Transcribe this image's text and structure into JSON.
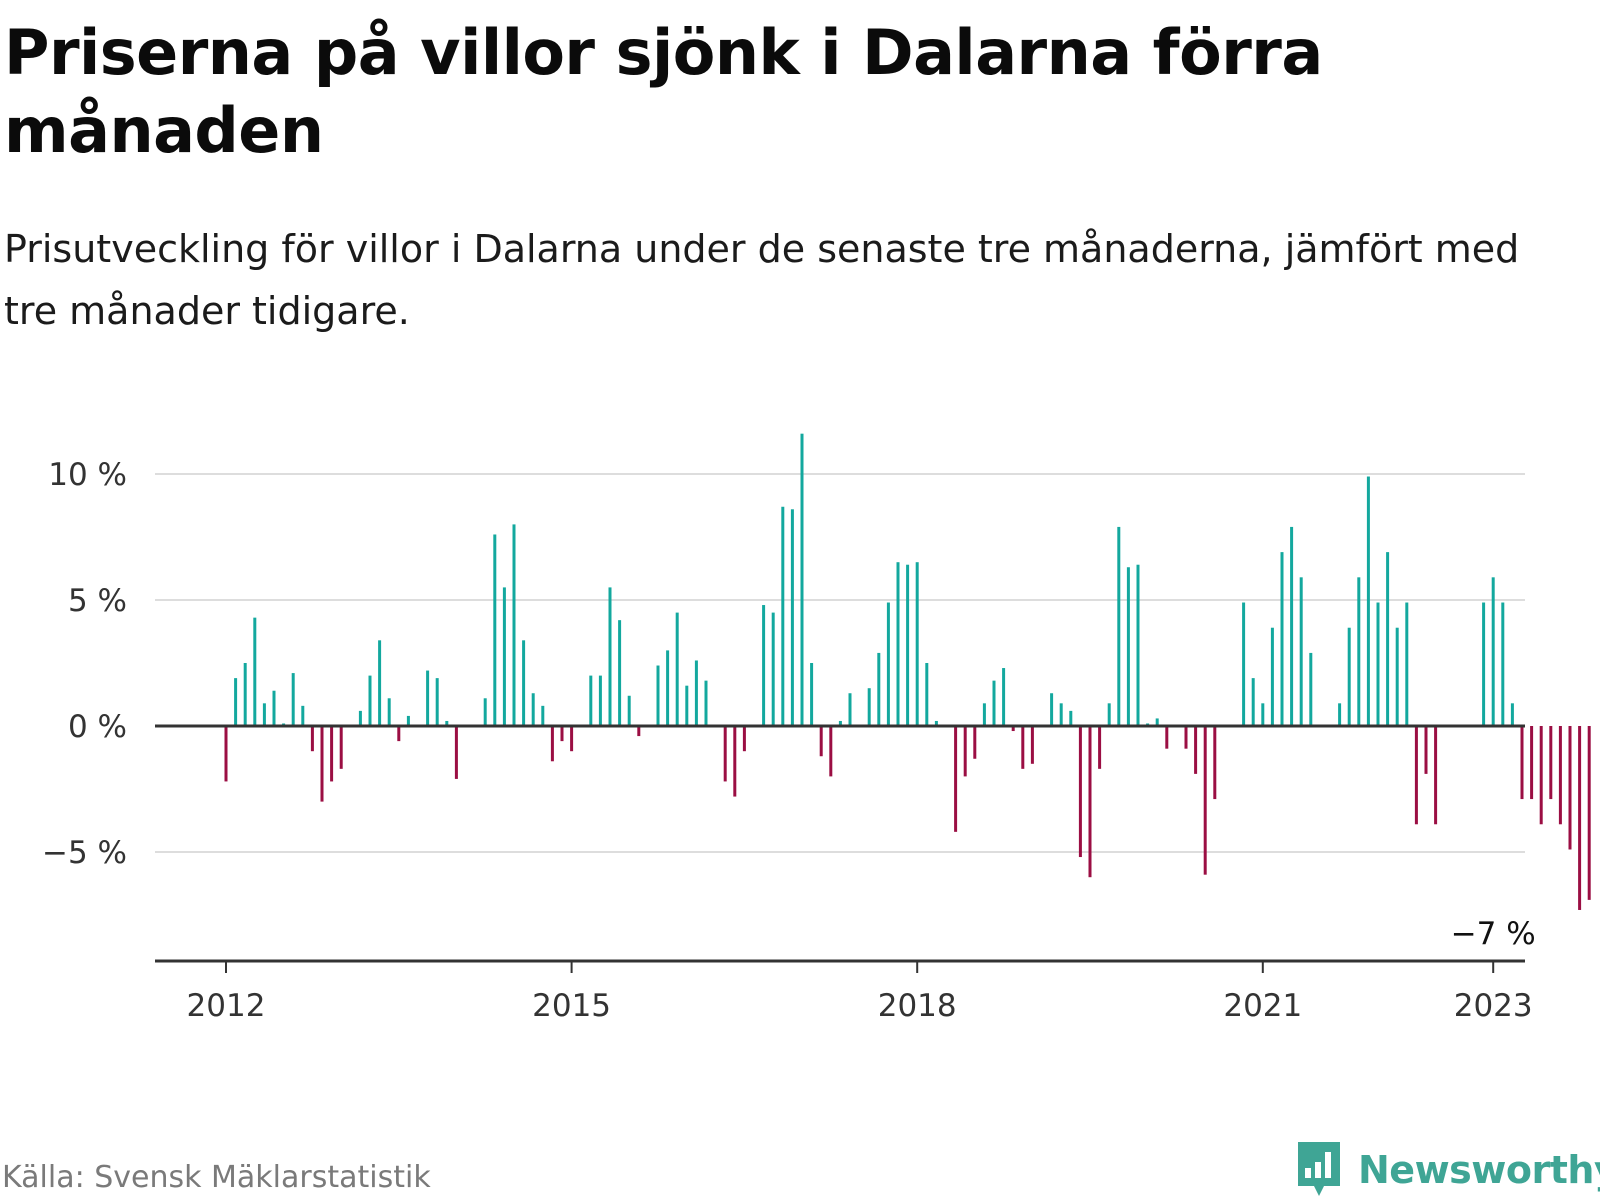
{
  "header": {
    "title": "Priserna på villor sjönk i Dalarna förra månaden",
    "subtitle": "Prisutveckling för villor i Dalarna under de senaste tre månaderna, jämfört med tre månader tidigare."
  },
  "footer": {
    "source": "Källa: Svensk Mäklarstatistik",
    "brand": "Newsworthy",
    "brand_icon": "bar-chart-speech-bubble-icon"
  },
  "colors": {
    "positive": "#13a89e",
    "negative": "#9b0e43",
    "grid": "#dddddd",
    "axis": "#333333",
    "brand": "#3fa595"
  },
  "chart_data": {
    "type": "bar",
    "unit": "%",
    "ylim": [
      -9.2,
      12
    ],
    "y_ticks": [
      {
        "value": 10,
        "label": "10 %"
      },
      {
        "value": 5,
        "label": "5 %"
      },
      {
        "value": 0,
        "label": "0 %"
      },
      {
        "value": -5,
        "label": "−5 %"
      }
    ],
    "x_ticks": [
      {
        "year": 2012,
        "label": "2012"
      },
      {
        "year": 2015,
        "label": "2015"
      },
      {
        "year": 2018,
        "label": "2018"
      },
      {
        "year": 2021,
        "label": "2021"
      },
      {
        "year": 2023,
        "label": "2023"
      }
    ],
    "x_start": "2012-01",
    "grid": true,
    "annotation": {
      "label": "−7 %",
      "month": "2023-01"
    },
    "values": [
      -2.2,
      1.9,
      2.5,
      4.3,
      0.9,
      1.4,
      0.1,
      2.1,
      0.8,
      -1.0,
      -3.0,
      -2.2,
      -1.7,
      0.0,
      0.6,
      2.0,
      3.4,
      1.1,
      -0.6,
      0.4,
      0.0,
      2.2,
      1.9,
      0.2,
      -2.1,
      0.0,
      0.0,
      1.1,
      7.6,
      5.5,
      8.0,
      3.4,
      1.3,
      0.8,
      -1.4,
      -0.6,
      -1.0,
      0.0,
      2.0,
      2.0,
      5.5,
      4.2,
      1.2,
      -0.4,
      0.0,
      2.4,
      3.0,
      4.5,
      1.6,
      2.6,
      1.8,
      0.0,
      -2.2,
      -2.8,
      -1.0,
      0.0,
      4.8,
      4.5,
      8.7,
      8.6,
      11.6,
      2.5,
      -1.2,
      -2.0,
      0.2,
      1.3,
      0.0,
      1.5,
      2.9,
      4.9,
      6.5,
      6.4,
      6.5,
      2.5,
      0.2,
      0.0,
      -4.2,
      -2.0,
      -1.3,
      0.9,
      1.8,
      2.3,
      -0.2,
      -1.7,
      -1.5,
      0.0,
      1.3,
      0.9,
      0.6,
      -5.2,
      -6.0,
      -1.7,
      0.9,
      7.9,
      6.3,
      6.4,
      0.1,
      0.3,
      -0.9,
      0.0,
      -0.9,
      -1.9,
      -5.9,
      -2.9,
      0.0,
      0.0,
      4.9,
      1.9,
      0.9,
      3.9,
      6.9,
      7.9,
      5.9,
      2.9,
      0.0,
      0.0,
      0.9,
      3.9,
      5.9,
      9.9,
      4.9,
      6.9,
      3.9,
      4.9,
      -3.9,
      -1.9,
      -3.9,
      0.0,
      0.0,
      0.0,
      0.0,
      4.9,
      5.9,
      4.9,
      0.9,
      -2.9,
      -2.9,
      -3.9,
      -2.9,
      -3.9,
      -4.9,
      -7.3,
      -6.9
    ]
  }
}
